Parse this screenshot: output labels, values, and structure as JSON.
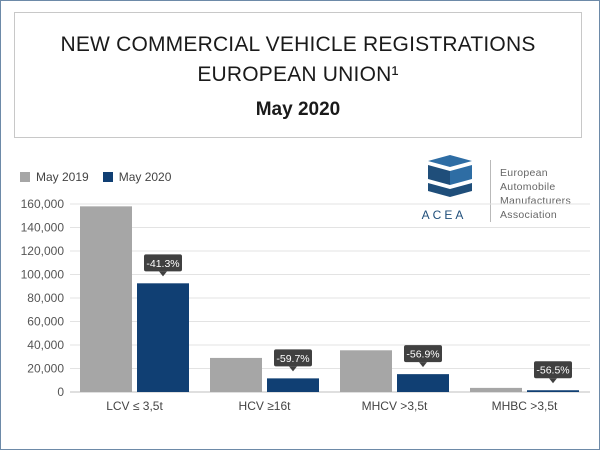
{
  "title": {
    "line1": "NEW COMMERCIAL VEHICLE REGISTRATIONS",
    "line2": "EUROPEAN UNION¹",
    "period": "May 2020"
  },
  "logo": {
    "name": "ACEA",
    "text_lines": [
      "European",
      "Automobile",
      "Manufacturers",
      "Association"
    ]
  },
  "colors": {
    "series_2019": "#a6a6a6",
    "series_2020": "#103f73",
    "label_box": "#404040",
    "grid": "#e3e3e3",
    "logo_blue": "#2e6da4"
  },
  "chart_data": {
    "type": "bar",
    "categories": [
      "LCV ≤ 3,5t",
      "HCV ≥16t",
      "MHCV >3,5t",
      "MHBC >3,5t"
    ],
    "series": [
      {
        "name": "May 2019",
        "values": [
          158000,
          29000,
          35500,
          3500
        ]
      },
      {
        "name": "May 2020",
        "values": [
          92500,
          11600,
          15200,
          1500
        ]
      }
    ],
    "annotations": [
      "-41.3%",
      "-59.7%",
      "-56.9%",
      "-56.5%"
    ],
    "yticks": [
      "0",
      "20,000",
      "40,000",
      "60,000",
      "80,000",
      "100,000",
      "120,000",
      "140,000",
      "160,000"
    ],
    "ylim": [
      0,
      160000
    ],
    "grid": true,
    "legend_position": "top-left",
    "xlabel": "",
    "ylabel": ""
  }
}
